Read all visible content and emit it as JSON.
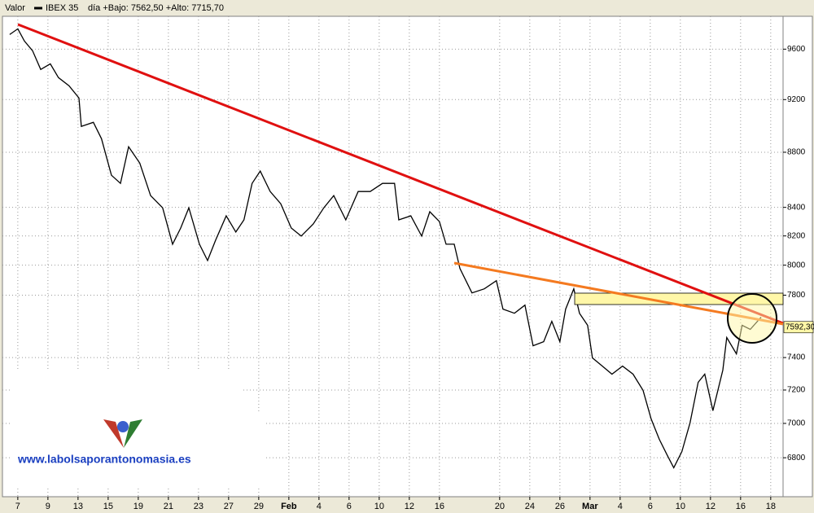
{
  "chart_data": {
    "type": "line",
    "header": {
      "field_label": "Valor",
      "series_label": "IBEX 35",
      "day_range": "día +Bajo: 7562,50 +Alto: 7715,70"
    },
    "watermark": "www.labolsaporantonomasia.es",
    "series": [
      {
        "name": "IBEX 35",
        "color": "#000000",
        "x": [
          -0.27,
          0,
          0.22,
          0.49,
          0.76,
          1.08,
          1.35,
          1.7,
          2.03,
          2.11,
          2.51,
          2.78,
          3.11,
          3.41,
          3.68,
          4.05,
          4.41,
          4.81,
          5.14,
          5.41,
          5.68,
          6.03,
          6.3,
          6.57,
          6.92,
          7.24,
          7.51,
          7.78,
          8.05,
          8.38,
          8.73,
          9.08,
          9.41,
          9.81,
          10.16,
          10.49,
          10.89,
          11.3,
          11.7,
          12.11,
          12.51,
          12.65,
          13.05,
          13.41,
          13.68,
          14.0,
          14.22,
          14.49,
          14.68,
          15.08,
          15.49,
          15.89,
          16.11,
          16.49,
          16.84,
          17.11,
          17.46,
          17.73,
          18.0,
          18.19,
          18.46,
          18.65,
          18.92,
          19.08,
          19.41,
          19.73,
          20.08,
          20.43,
          20.76,
          21.03,
          21.3,
          21.57,
          21.78,
          22.05,
          22.32,
          22.59,
          22.81,
          23.08,
          23.41,
          23.54,
          23.86,
          24.05,
          24.32,
          24.68
        ],
        "values": [
          9719,
          9766,
          9666,
          9587,
          9437,
          9482,
          9372,
          9308,
          9212,
          8994,
          9025,
          8901,
          8631,
          8572,
          8841,
          8720,
          8484,
          8397,
          8143,
          8255,
          8397,
          8143,
          8032,
          8171,
          8340,
          8227,
          8312,
          8572,
          8661,
          8513,
          8426,
          8255,
          8199,
          8283,
          8397,
          8484,
          8312,
          8513,
          8513,
          8572,
          8572,
          8312,
          8340,
          8199,
          8369,
          8300,
          8143,
          8143,
          7978,
          7815,
          7842,
          7896,
          7709,
          7682,
          7735,
          7474,
          7500,
          7630,
          7500,
          7709,
          7842,
          7682,
          7604,
          7398,
          7347,
          7297,
          7347,
          7297,
          7198,
          7027,
          6907,
          6813,
          6743,
          6836,
          7003,
          7247,
          7297,
          7076,
          7322,
          7526,
          7423,
          7604,
          7578,
          7656
        ]
      }
    ],
    "last_price": {
      "value": 7592.3,
      "label": "7592,30"
    },
    "log_scale": true,
    "grid": true,
    "xlim": [
      -0.51,
      25.41
    ],
    "xticks": [
      {
        "value": 0,
        "label": "7"
      },
      {
        "value": 1,
        "label": "9"
      },
      {
        "value": 2,
        "label": "13"
      },
      {
        "value": 3,
        "label": "15"
      },
      {
        "value": 4,
        "label": "19"
      },
      {
        "value": 5,
        "label": "21"
      },
      {
        "value": 6,
        "label": "23"
      },
      {
        "value": 7,
        "label": "27"
      },
      {
        "value": 8,
        "label": "29"
      },
      {
        "value": 9,
        "label": "Feb"
      },
      {
        "value": 10,
        "label": "4"
      },
      {
        "value": 11,
        "label": "6"
      },
      {
        "value": 12,
        "label": "10"
      },
      {
        "value": 13,
        "label": "12"
      },
      {
        "value": 14,
        "label": "16"
      },
      {
        "value": 16,
        "label": "20"
      },
      {
        "value": 17,
        "label": "24"
      },
      {
        "value": 18,
        "label": "26"
      },
      {
        "value": 19,
        "label": "Mar"
      },
      {
        "value": 20,
        "label": "4"
      },
      {
        "value": 21,
        "label": "6"
      },
      {
        "value": 22,
        "label": "10"
      },
      {
        "value": 23,
        "label": "12"
      },
      {
        "value": 24,
        "label": "16"
      },
      {
        "value": 25,
        "label": "18"
      }
    ],
    "ylim": [
      6580,
      9870
    ],
    "yticks": [
      6800,
      7000,
      7200,
      7400,
      7800,
      8000,
      8200,
      8400,
      8800,
      9200,
      9600
    ]
  }
}
